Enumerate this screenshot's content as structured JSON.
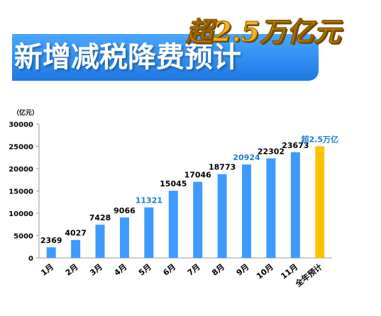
{
  "banner": {
    "title": "新增减税降费预计"
  },
  "headline": "超2.5万亿元",
  "chart_data": {
    "type": "bar",
    "unit_label": "（亿元）",
    "categories": [
      "1月",
      "2月",
      "3月",
      "4月",
      "5月",
      "6月",
      "7月",
      "8月",
      "9月",
      "10月",
      "11月",
      "全年预计"
    ],
    "values": [
      2369,
      4027,
      7428,
      9066,
      11321,
      15045,
      17046,
      18773,
      20924,
      22302,
      23673,
      25000
    ],
    "data_labels": [
      "2369",
      "4027",
      "7428",
      "9066",
      "11321",
      "15045",
      "17046",
      "18773",
      "20924",
      "22302",
      "23673",
      "超2.5万亿"
    ],
    "highlighted_labels": [
      4,
      8,
      11
    ],
    "ylim": [
      0,
      30000
    ],
    "yticks": [
      0,
      5000,
      10000,
      15000,
      20000,
      25000,
      30000
    ],
    "colors": {
      "bar": "#3d9bff",
      "forecast_bar": "#ffc000",
      "highlight_label": "#1f7ad1"
    },
    "grid": false
  }
}
